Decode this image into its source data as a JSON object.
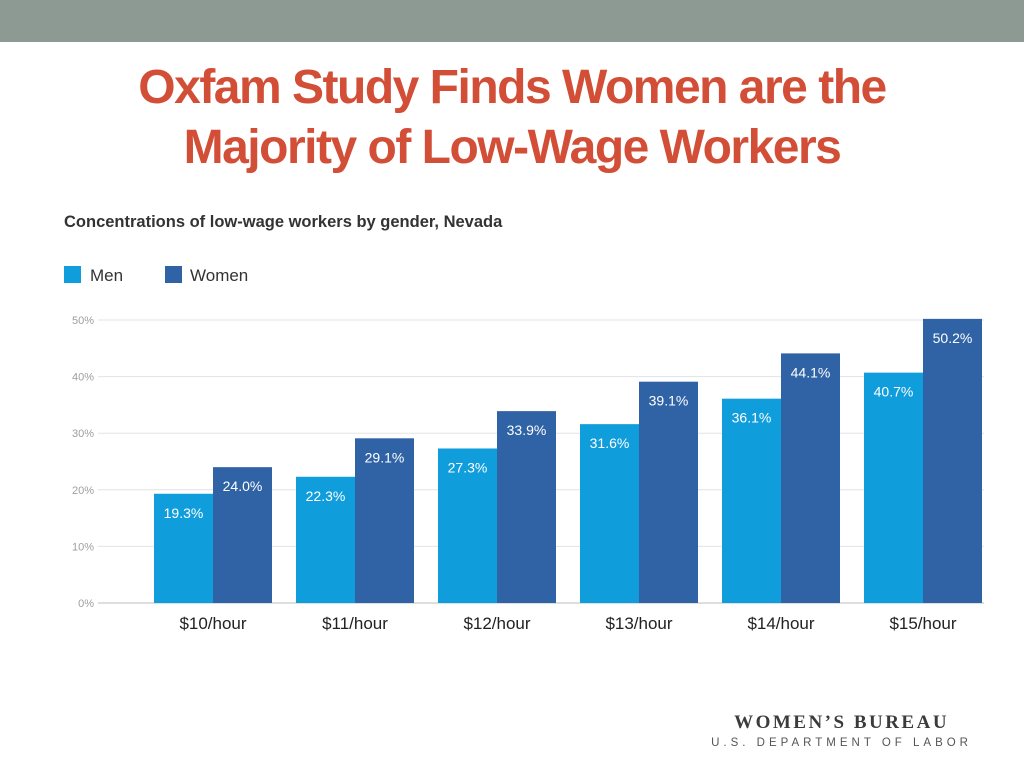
{
  "slide": {
    "title_line1": "Oxfam Study Finds Women are the",
    "title_line2": "Majority of Low-Wage Workers",
    "colors": {
      "top_bar": "#8c9a93",
      "title": "#d24e37"
    }
  },
  "logo": {
    "line1": "WOMEN’S BUREAU",
    "line2": "U.S. DEPARTMENT OF LABOR"
  },
  "chart_data": {
    "type": "bar",
    "title": "Concentrations of low-wage workers by gender, Nevada",
    "categories": [
      "$10/hour",
      "$11/hour",
      "$12/hour",
      "$13/hour",
      "$14/hour",
      "$15/hour"
    ],
    "series": [
      {
        "name": "Men",
        "color": "#0f9ddc",
        "values": [
          19.3,
          22.3,
          27.3,
          31.6,
          36.1,
          40.7
        ],
        "labels": [
          "19.3%",
          "22.3%",
          "27.3%",
          "31.6%",
          "36.1%",
          "40.7%"
        ]
      },
      {
        "name": "Women",
        "color": "#2f63a6",
        "values": [
          24.0,
          29.1,
          33.9,
          39.1,
          44.1,
          50.2
        ],
        "labels": [
          "24.0%",
          "29.1%",
          "33.9%",
          "39.1%",
          "44.1%",
          "50.2%"
        ]
      }
    ],
    "yticks": [
      "0%",
      "10%",
      "20%",
      "30%",
      "40%",
      "50%"
    ],
    "ylim": [
      0,
      50
    ],
    "grid": true,
    "legend": "top-left"
  }
}
